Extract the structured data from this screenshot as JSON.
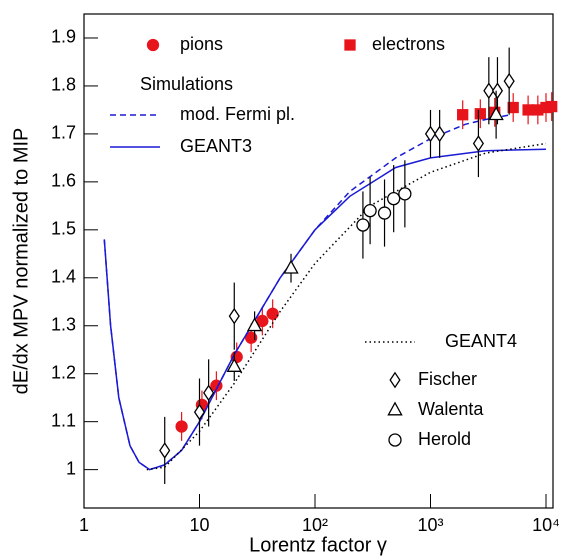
{
  "chart_data": {
    "type": "scatter",
    "xlabel": "Lorentz factor γ",
    "ylabel": "dE/dx MPV normalized to MIP",
    "xscale": "log",
    "xlim": [
      1,
      11500
    ],
    "ylim": [
      0.92,
      1.95
    ],
    "xticks": [
      1,
      10,
      {
        "value": 100,
        "label": "10²"
      },
      {
        "value": 1000,
        "label": "10³"
      },
      {
        "value": 10000,
        "label": "10⁴"
      }
    ],
    "yticks": [
      1,
      1.1,
      1.2,
      1.3,
      1.4,
      1.5,
      1.6,
      1.7,
      1.8,
      1.9
    ],
    "legend_header": "Simulations",
    "series": [
      {
        "name": "pions",
        "color": "#e8141c",
        "mode": "markers",
        "marker": "circle",
        "filled": true,
        "x": [
          7,
          10.5,
          14,
          21,
          28,
          35,
          43
        ],
        "values": [
          1.09,
          1.135,
          1.175,
          1.235,
          1.275,
          1.31,
          1.325
        ],
        "errors": [
          0.03,
          0.03,
          0.03,
          0.03,
          0.03,
          0.03,
          0.03
        ]
      },
      {
        "name": "electrons",
        "color": "#e8141c",
        "mode": "markers",
        "marker": "square",
        "filled": true,
        "x": [
          1900,
          2700,
          3600,
          5200,
          7000,
          8500,
          10000,
          11200
        ],
        "values": [
          1.74,
          1.742,
          1.745,
          1.755,
          1.75,
          1.75,
          1.755,
          1.757
        ],
        "errors": [
          0.03,
          0.03,
          0.03,
          0.03,
          0.03,
          0.03,
          0.03,
          0.03
        ]
      },
      {
        "name": "mod. Fermi pl.",
        "color": "#1a1ad6",
        "mode": "line",
        "dash": "6,4",
        "x": [
          1.5,
          1.7,
          2,
          2.5,
          3,
          3.7,
          5,
          7,
          10,
          20,
          50,
          100,
          200,
          500,
          1000,
          2000,
          3000,
          5000
        ],
        "values": [
          1.48,
          1.3,
          1.15,
          1.05,
          1.015,
          1.0,
          1.01,
          1.04,
          1.1,
          1.24,
          1.4,
          1.5,
          1.58,
          1.65,
          1.69,
          1.72,
          1.73,
          1.74
        ]
      },
      {
        "name": "GEANT3",
        "color": "#1a1ad6",
        "mode": "line",
        "dash": "none",
        "x": [
          1.5,
          1.7,
          2,
          2.5,
          3,
          3.7,
          5,
          7,
          10,
          20,
          50,
          100,
          200,
          500,
          1000,
          3000,
          10000
        ],
        "values": [
          1.48,
          1.3,
          1.15,
          1.05,
          1.015,
          1.0,
          1.01,
          1.04,
          1.1,
          1.24,
          1.4,
          1.5,
          1.57,
          1.63,
          1.65,
          1.665,
          1.668
        ]
      },
      {
        "name": "GEANT4",
        "color": "#000000",
        "mode": "line",
        "dash": "1.5,3",
        "x": [
          3.5,
          5,
          10,
          20,
          50,
          100,
          300,
          1000,
          3000,
          10000
        ],
        "values": [
          1.0,
          1.005,
          1.08,
          1.18,
          1.33,
          1.43,
          1.55,
          1.62,
          1.66,
          1.68
        ]
      },
      {
        "name": "Fischer",
        "color": "#000000",
        "mode": "markers",
        "marker": "diamond",
        "filled": false,
        "x": [
          5,
          10,
          12,
          20,
          1000,
          1200,
          2600,
          3200,
          3800,
          4800
        ],
        "values": [
          1.04,
          1.12,
          1.16,
          1.32,
          1.7,
          1.7,
          1.68,
          1.79,
          1.79,
          1.81
        ],
        "errors": [
          0.07,
          0.07,
          0.07,
          0.07,
          0.05,
          0.05,
          0.07,
          0.07,
          0.07,
          0.07
        ]
      },
      {
        "name": "Walenta",
        "color": "#000000",
        "mode": "markers",
        "marker": "triangle",
        "filled": false,
        "x": [
          20,
          30,
          62,
          3700
        ],
        "values": [
          1.215,
          1.3,
          1.42,
          1.74
        ],
        "errors": [
          0.03,
          0.03,
          0.03,
          0.05
        ]
      },
      {
        "name": "Herold",
        "color": "#000000",
        "mode": "markers",
        "marker": "circle",
        "filled": false,
        "x": [
          260,
          300,
          400,
          480,
          600
        ],
        "values": [
          1.51,
          1.54,
          1.535,
          1.565,
          1.575
        ],
        "errors": [
          0.07,
          0.07,
          0.07,
          0.07,
          0.07
        ]
      }
    ]
  }
}
